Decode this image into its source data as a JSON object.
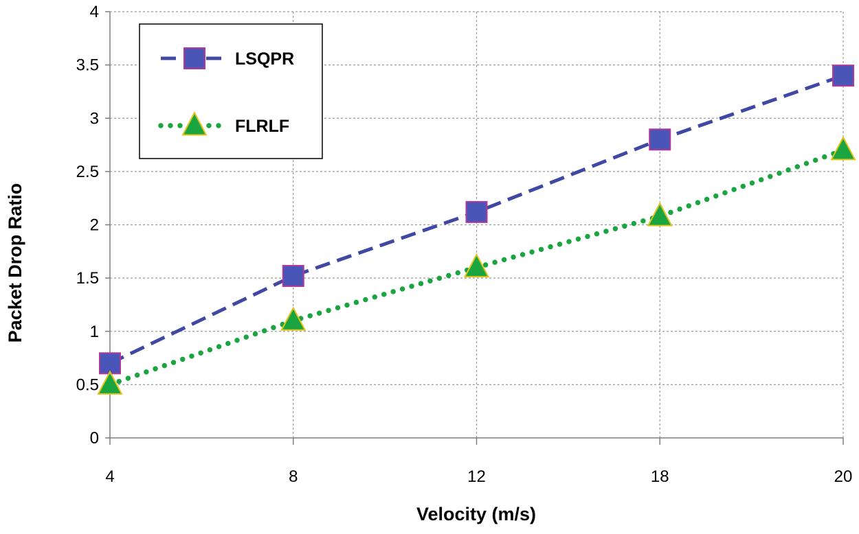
{
  "chart_data": {
    "type": "line",
    "title": "",
    "xlabel": "Velocity (m/s)",
    "ylabel": "Packet Drop Ratio",
    "categories": [
      "4",
      "8",
      "12",
      "18",
      "20"
    ],
    "ylim": [
      0,
      4
    ],
    "yticks": [
      "0",
      "0.5",
      "1",
      "1.5",
      "2",
      "2.5",
      "3",
      "3.5",
      "4"
    ],
    "grid": true,
    "legend_position": "top-left",
    "series": [
      {
        "name": "LSQPR",
        "values": [
          0.7,
          1.52,
          2.12,
          2.8,
          3.4
        ],
        "color": "#3f48a3",
        "marker": "square",
        "marker_fill": "#4a55b8",
        "marker_stroke": "#b0399a",
        "line": "dashed"
      },
      {
        "name": "FLRLF",
        "values": [
          0.5,
          1.1,
          1.6,
          2.08,
          2.7
        ],
        "color": "#1aa541",
        "marker": "triangle",
        "marker_fill": "#1aa541",
        "marker_stroke": "#e0c21a",
        "line": "dotted"
      }
    ]
  }
}
